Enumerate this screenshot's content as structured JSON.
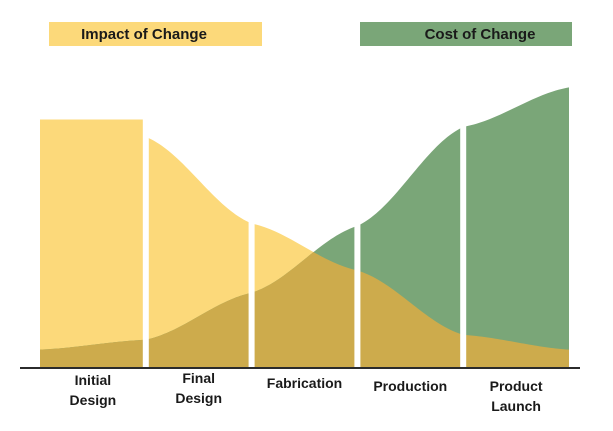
{
  "chart_data": {
    "type": "area",
    "categories": [
      "Initial\nDesign",
      "Final\nDesign",
      "Fabrication",
      "Production",
      "Product\nLaunch"
    ],
    "series": [
      {
        "name": "Impact of Change",
        "color": "#fcd97a",
        "x": [
          0,
          1,
          2,
          3,
          4,
          5
        ],
        "values": [
          100,
          93,
          58,
          39,
          13,
          7
        ]
      },
      {
        "name": "Cost of Change",
        "color": "#7aa678",
        "x": [
          0,
          1,
          2,
          3,
          4,
          5
        ],
        "values": [
          7,
          11,
          30,
          57,
          97,
          113
        ]
      }
    ],
    "overlap_color": "#cdab4c",
    "xlim": [
      0,
      5
    ],
    "ylim": [
      0,
      120
    ],
    "grid": false,
    "legend_position": "top",
    "title": "",
    "xlabel": "",
    "ylabel": ""
  }
}
